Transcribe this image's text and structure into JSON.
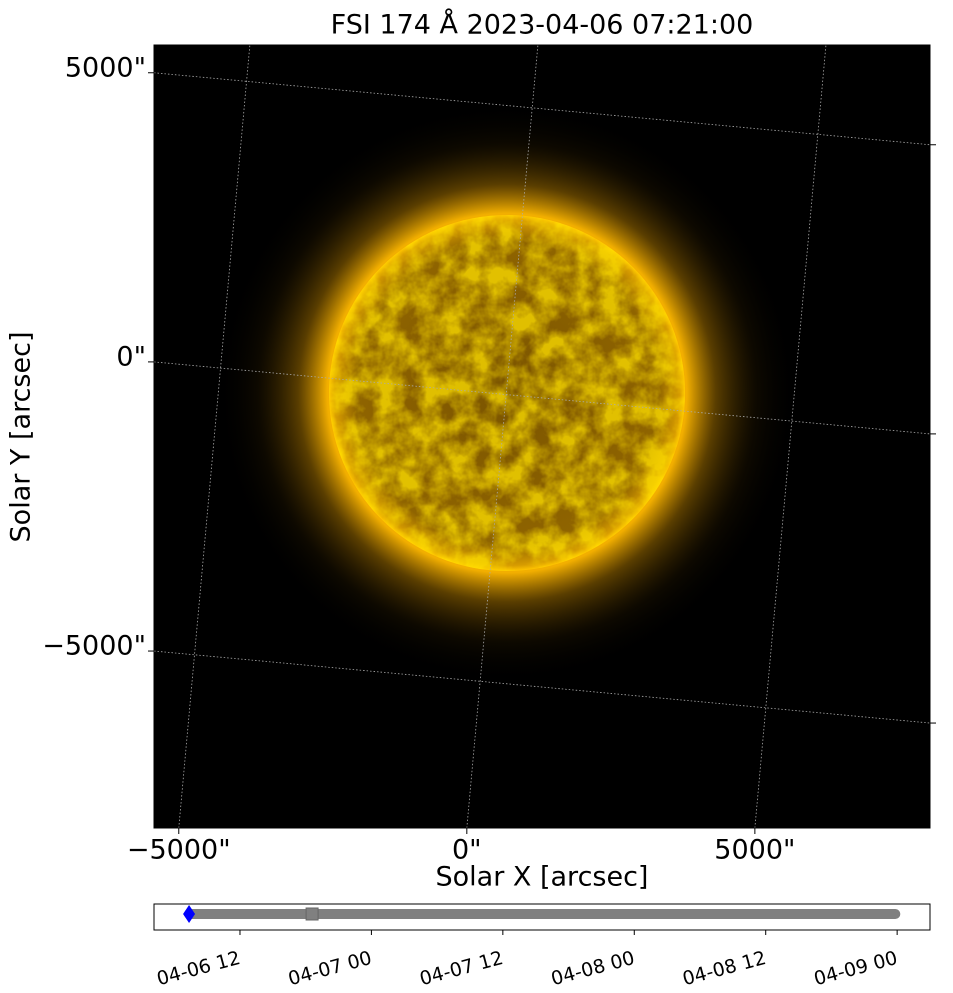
{
  "chart_data": [
    {
      "type": "image",
      "title": "FSI 174 Å 2023-04-06 07:21:00",
      "x_label": "Solar X [arcsec]",
      "y_label": "Solar Y [arcsec]",
      "xlim": [
        -5430,
        8040
      ],
      "ylim": [
        -8060,
        5480
      ],
      "xticks": [
        {
          "value": -5000,
          "label": "−5000\""
        },
        {
          "value": 0,
          "label": "0\""
        },
        {
          "value": 5000,
          "label": "5000\""
        }
      ],
      "yticks": [
        {
          "value": -5000,
          "label": "−5000\""
        },
        {
          "value": 0,
          "label": "0\""
        },
        {
          "value": 5000,
          "label": "5000\""
        }
      ],
      "grid": true,
      "color": "#ffb800"
    },
    {
      "type": "timeline",
      "xlim": [
        "2023-04-06T04:09:00",
        "2023-04-09T03:00:00"
      ],
      "xticks": [
        {
          "value": "2023-04-06T12:00:00",
          "label": "04-06 12"
        },
        {
          "value": "2023-04-07T00:00:00",
          "label": "04-07 00"
        },
        {
          "value": "2023-04-07T12:00:00",
          "label": "04-07 12"
        },
        {
          "value": "2023-04-08T00:00:00",
          "label": "04-08 00"
        },
        {
          "value": "2023-04-08T12:00:00",
          "label": "04-08 12"
        },
        {
          "value": "2023-04-09T00:00:00",
          "label": "04-09 00"
        }
      ],
      "range": {
        "x": [
          "2023-04-06T07:21:00",
          "2023-04-08T23:50:00"
        ],
        "color": "#808080"
      },
      "marker": {
        "x": "2023-04-06T18:35:00",
        "color": "#808080"
      },
      "current": {
        "x": "2023-04-06T07:21:00",
        "color": "#0000ff"
      }
    }
  ]
}
